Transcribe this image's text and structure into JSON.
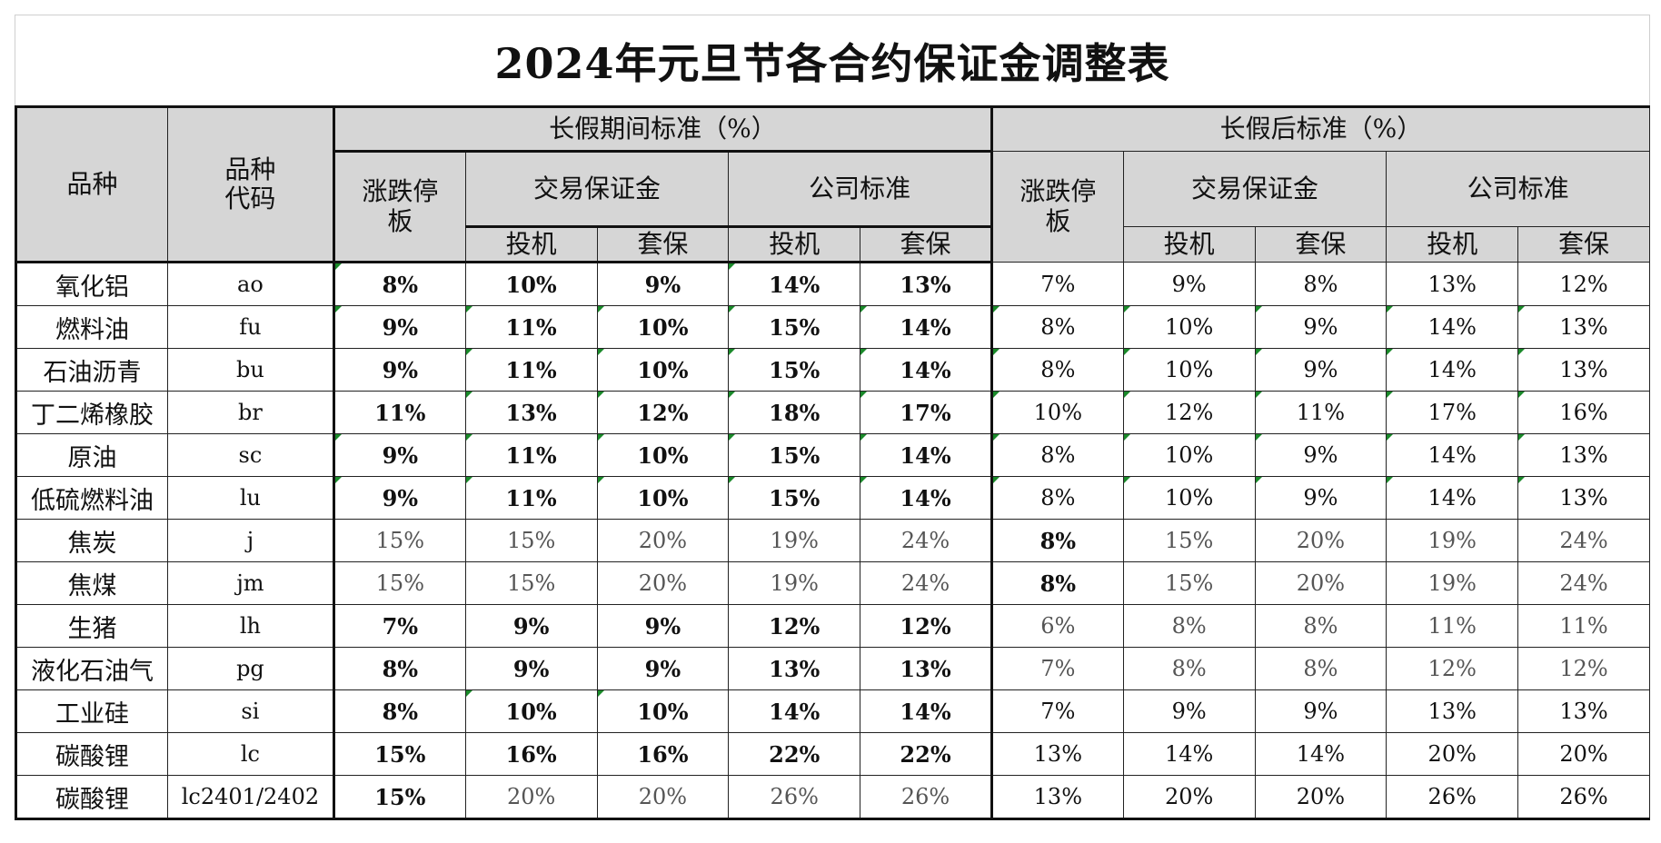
{
  "title": "2024年元旦节各合约保证金调整表",
  "header": {
    "variety": "品种",
    "code": "品种代码",
    "holiday_group": "长假期间标准（%）",
    "after_group": "长假后标准（%）",
    "limit": "涨跌停板",
    "exchange_margin": "交易保证金",
    "company_standard": "公司标准",
    "speculation": "投机",
    "hedge": "套保"
  },
  "rows": [
    {
      "name": "氧化铝",
      "code": "ao",
      "v": [
        "8%",
        "10%",
        "9%",
        "14%",
        "13%",
        "7%",
        "9%",
        "8%",
        "13%",
        "12%"
      ]
    },
    {
      "name": "燃料油",
      "code": "fu",
      "v": [
        "9%",
        "11%",
        "10%",
        "15%",
        "14%",
        "8%",
        "10%",
        "9%",
        "14%",
        "13%"
      ]
    },
    {
      "name": "石油沥青",
      "code": "bu",
      "v": [
        "9%",
        "11%",
        "10%",
        "15%",
        "14%",
        "8%",
        "10%",
        "9%",
        "14%",
        "13%"
      ]
    },
    {
      "name": "丁二烯橡胶",
      "code": "br",
      "v": [
        "11%",
        "13%",
        "12%",
        "18%",
        "17%",
        "10%",
        "12%",
        "11%",
        "17%",
        "16%"
      ]
    },
    {
      "name": "原油",
      "code": "sc",
      "v": [
        "9%",
        "11%",
        "10%",
        "15%",
        "14%",
        "8%",
        "10%",
        "9%",
        "14%",
        "13%"
      ]
    },
    {
      "name": "低硫燃料油",
      "code": "lu",
      "v": [
        "9%",
        "11%",
        "10%",
        "15%",
        "14%",
        "8%",
        "10%",
        "9%",
        "14%",
        "13%"
      ]
    },
    {
      "name": "焦炭",
      "code": "j",
      "v": [
        "15%",
        "15%",
        "20%",
        "19%",
        "24%",
        "8%",
        "15%",
        "20%",
        "19%",
        "24%"
      ]
    },
    {
      "name": "焦煤",
      "code": "jm",
      "v": [
        "15%",
        "15%",
        "20%",
        "19%",
        "24%",
        "8%",
        "15%",
        "20%",
        "19%",
        "24%"
      ]
    },
    {
      "name": "生猪",
      "code": "lh",
      "v": [
        "7%",
        "9%",
        "9%",
        "12%",
        "12%",
        "6%",
        "8%",
        "8%",
        "11%",
        "11%"
      ]
    },
    {
      "name": "液化石油气",
      "code": "pg",
      "v": [
        "8%",
        "9%",
        "9%",
        "13%",
        "13%",
        "7%",
        "8%",
        "8%",
        "12%",
        "12%"
      ]
    },
    {
      "name": "工业硅",
      "code": "si",
      "v": [
        "8%",
        "10%",
        "10%",
        "14%",
        "14%",
        "7%",
        "9%",
        "9%",
        "13%",
        "13%"
      ]
    },
    {
      "name": "碳酸锂",
      "code": "lc",
      "v": [
        "15%",
        "16%",
        "16%",
        "22%",
        "22%",
        "13%",
        "14%",
        "14%",
        "20%",
        "20%"
      ]
    },
    {
      "name": "碳酸锂",
      "code": "lc2401/2402",
      "v": [
        "15%",
        "20%",
        "20%",
        "26%",
        "26%",
        "13%",
        "20%",
        "20%",
        "26%",
        "26%"
      ]
    }
  ]
}
